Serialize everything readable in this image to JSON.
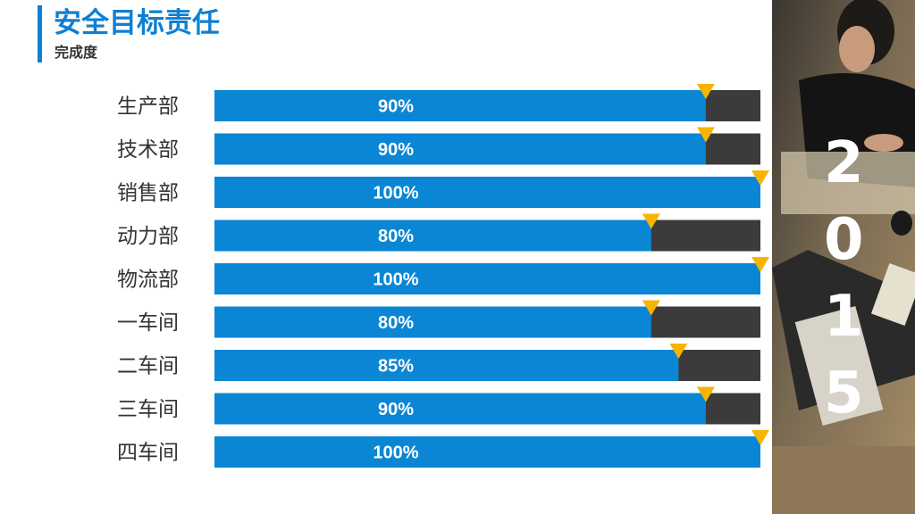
{
  "header": {
    "title": "安全目标责任",
    "subtitle": "完成度"
  },
  "year_digits": [
    "2",
    "0",
    "1",
    "5"
  ],
  "colors": {
    "accent": "#0f7fd3",
    "bar_fill": "#0a86d4",
    "bar_track": "#3b3b3b",
    "marker": "#f7b500"
  },
  "chart_data": {
    "type": "bar",
    "orientation": "horizontal",
    "categories": [
      "生产部",
      "技术部",
      "销售部",
      "动力部",
      "物流部",
      "一车间",
      "二车间",
      "三车间",
      "四车间"
    ],
    "values": [
      90,
      90,
      100,
      80,
      100,
      80,
      85,
      90,
      100
    ],
    "value_labels": [
      "90%",
      "90%",
      "100%",
      "80%",
      "100%",
      "80%",
      "85%",
      "90%",
      "100%"
    ],
    "xlim": [
      0,
      100
    ],
    "grid": false,
    "legend": "none"
  }
}
